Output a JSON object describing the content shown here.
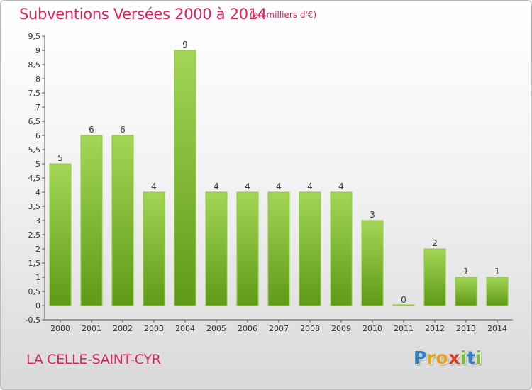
{
  "header": {
    "title": "Subventions Versées 2000 à 2014",
    "subtitle": "(en milliers d'€)"
  },
  "footer": {
    "commune": "LA CELLE-SAINT-CYR",
    "logo_letters": [
      "P",
      "r",
      "o",
      "x",
      "i",
      "t",
      "i"
    ]
  },
  "colors": {
    "title": "#d9265c",
    "bar_light": "#a3d656",
    "bar_dark": "#5e9a17",
    "bar_edge": "#8ccc3a"
  },
  "chart_data": {
    "type": "bar",
    "categories": [
      "2000",
      "2001",
      "2002",
      "2003",
      "2004",
      "2005",
      "2006",
      "2007",
      "2008",
      "2009",
      "2010",
      "2011",
      "2012",
      "2013",
      "2014"
    ],
    "values": [
      5,
      6,
      6,
      4,
      9,
      4,
      4,
      4,
      4,
      4,
      3,
      0,
      2,
      1,
      1
    ],
    "data_labels": [
      "5",
      "6",
      "6",
      "4",
      "9",
      "4",
      "4",
      "4",
      "4",
      "4",
      "3",
      "0",
      "2",
      "1",
      "1"
    ],
    "title": "Subventions Versées 2000 à 2014",
    "subtitle": "(en milliers d'€)",
    "xlabel": "",
    "ylabel": "",
    "ylim": [
      -0.5,
      9.5
    ],
    "yticks": [
      "-0,5",
      "0",
      "0,5",
      "1",
      "1,5",
      "2",
      "2,5",
      "3",
      "3,5",
      "4",
      "4,5",
      "5",
      "5,5",
      "6",
      "6,5",
      "7",
      "7,5",
      "8",
      "8,5",
      "9",
      "9,5"
    ],
    "grid": false,
    "legend": "none"
  }
}
